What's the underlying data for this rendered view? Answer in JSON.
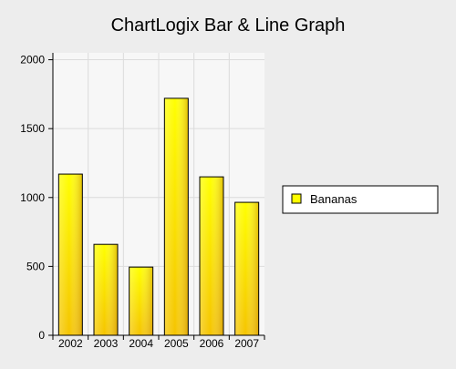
{
  "chart_data": {
    "type": "bar",
    "title": "ChartLogix Bar & Line Graph",
    "categories": [
      "2002",
      "2003",
      "2004",
      "2005",
      "2006",
      "2007"
    ],
    "series": [
      {
        "name": "Bananas",
        "values": [
          1170,
          660,
          495,
          1720,
          1150,
          965
        ]
      }
    ],
    "y_ticks": [
      0,
      500,
      1000,
      1500,
      2000
    ],
    "ylim": [
      0,
      2050
    ],
    "xlabel": "",
    "ylabel": "",
    "grid": true,
    "legend_position": "right"
  },
  "colors": {
    "background": "#ededed",
    "plot_background": "#f7f7f7",
    "grid": "#dcdcdc",
    "bar_top": "#ffff00",
    "bar_bottom": "#f5c400",
    "bar_dark": "#c88a00",
    "bar_stroke": "#000000"
  }
}
